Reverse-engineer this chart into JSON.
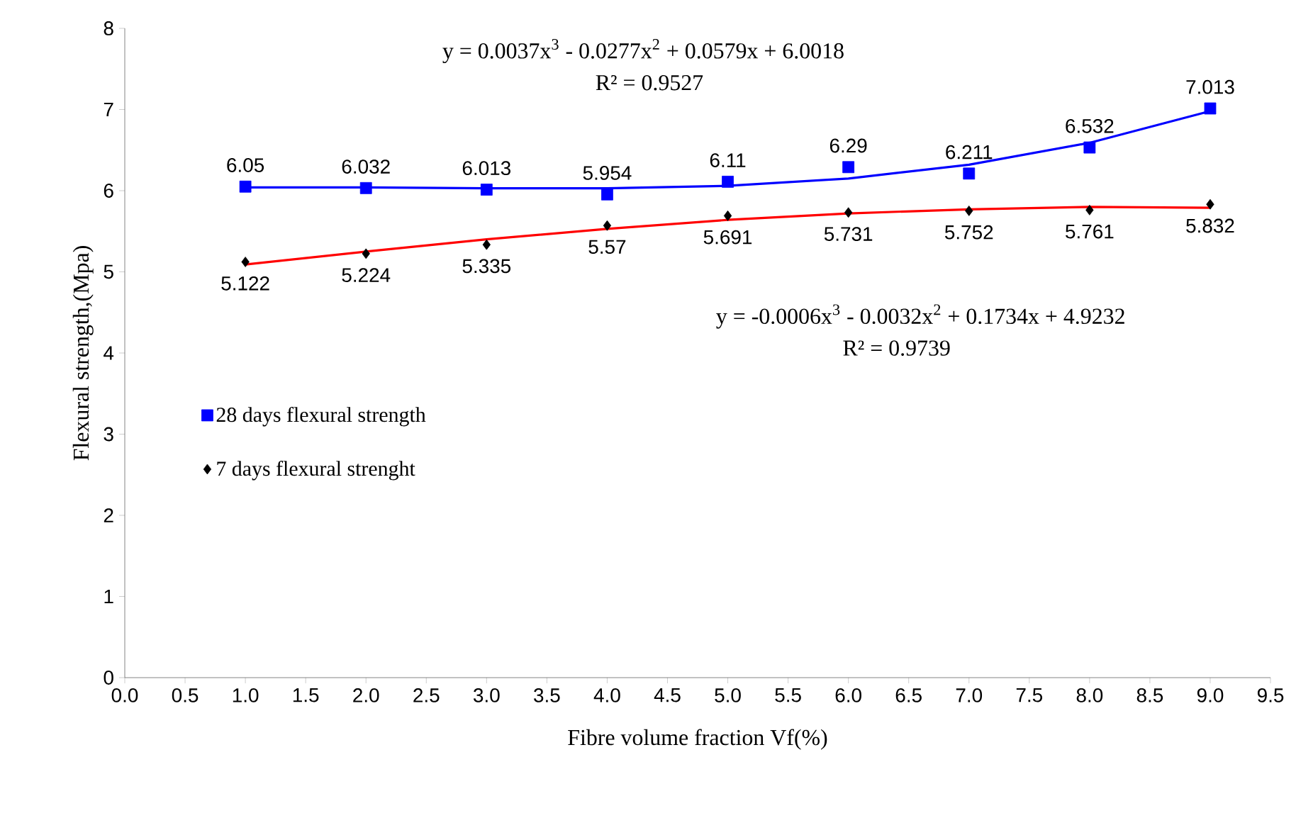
{
  "chart_data": {
    "type": "scatter",
    "xlabel": "Fibre volume fraction Vf(%)",
    "ylabel": "Flexural strength,(Mpa)",
    "xlim": [
      0,
      9.5
    ],
    "ylim": [
      0,
      8
    ],
    "xticks": [
      {
        "value": 0,
        "label": "0.0"
      },
      {
        "value": 0.5,
        "label": "0.5"
      },
      {
        "value": 1,
        "label": "1.0"
      },
      {
        "value": 1.5,
        "label": "1.5"
      },
      {
        "value": 2,
        "label": "2.0"
      },
      {
        "value": 2.5,
        "label": "2.5"
      },
      {
        "value": 3,
        "label": "3.0"
      },
      {
        "value": 3.5,
        "label": "3.5"
      },
      {
        "value": 4,
        "label": "4.0"
      },
      {
        "value": 4.5,
        "label": "4.5"
      },
      {
        "value": 5,
        "label": "5.0"
      },
      {
        "value": 5.5,
        "label": "5.5"
      },
      {
        "value": 6,
        "label": "6.0"
      },
      {
        "value": 6.5,
        "label": "6.5"
      },
      {
        "value": 7,
        "label": "7.0"
      },
      {
        "value": 7.5,
        "label": "7.5"
      },
      {
        "value": 8,
        "label": "8.0"
      },
      {
        "value": 8.5,
        "label": "8.5"
      },
      {
        "value": 9,
        "label": "9.0"
      },
      {
        "value": 9.5,
        "label": "9.5"
      }
    ],
    "yticks": [
      0,
      1,
      2,
      3,
      4,
      5,
      6,
      7,
      8
    ],
    "grid": false,
    "legend": "left",
    "series": [
      {
        "name": "28 days flexural strength",
        "marker": "square",
        "color": "#0000ff",
        "x": [
          1,
          2,
          3,
          4,
          5,
          6,
          7,
          8,
          9
        ],
        "values": [
          6.05,
          6.032,
          6.013,
          5.954,
          6.11,
          6.29,
          6.211,
          6.532,
          7.013
        ],
        "value_labels": [
          "6.05",
          "6.032",
          "6.013",
          "5.954",
          "6.11",
          "6.29",
          "6.211",
          "6.532",
          "7.013"
        ]
      },
      {
        "name": "7 days flexural strenght",
        "marker": "diamond",
        "color": "#000000",
        "x": [
          1,
          2,
          3,
          4,
          5,
          6,
          7,
          8,
          9
        ],
        "values": [
          5.122,
          5.224,
          5.335,
          5.57,
          5.691,
          5.731,
          5.752,
          5.761,
          5.832
        ],
        "value_labels": [
          "5.122",
          "5.224",
          "5.335",
          "5.57",
          "5.691",
          "5.731",
          "5.752",
          "5.761",
          "5.832"
        ]
      },
      {
        "type": "line",
        "line_style": "solid",
        "color": "#0000ff",
        "x": [
          1,
          2,
          3,
          4,
          5,
          6,
          7,
          8,
          9
        ],
        "values": [
          6.04,
          6.04,
          6.03,
          6.03,
          6.06,
          6.15,
          6.32,
          6.59,
          6.98
        ]
      },
      {
        "type": "line",
        "line_style": "solid",
        "color": "#ff0000",
        "x": [
          1,
          2,
          3,
          4,
          5,
          6,
          7,
          8,
          9
        ],
        "values": [
          5.09,
          5.25,
          5.4,
          5.53,
          5.64,
          5.72,
          5.77,
          5.8,
          5.79
        ]
      }
    ],
    "annotations": [
      "y = 0.0037x$^{3}$ - 0.0277x$^{2}$ + 0.0579x + 6.0018",
      "R² = 0.9527",
      "y = -0.0006x$^{3}$ - 0.0032x$^{2}$ + 0.1734x + 4.9232",
      "R² = 0.9739"
    ]
  }
}
